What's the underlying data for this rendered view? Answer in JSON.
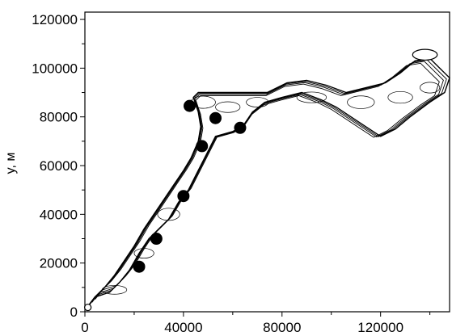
{
  "chart_data": {
    "type": "scatter",
    "title": "",
    "xlabel": "",
    "ylabel": "y, м",
    "xlim": [
      0,
      148000
    ],
    "ylim": [
      0,
      123000
    ],
    "x_ticks": [
      0,
      40000,
      80000,
      120000
    ],
    "x_tick_labels": [
      "0",
      "40000",
      "80000",
      "120000"
    ],
    "y_ticks": [
      0,
      20000,
      40000,
      60000,
      80000,
      100000,
      120000
    ],
    "y_tick_labels": [
      "0",
      "20000",
      "40000",
      "60000",
      "80000",
      "100000",
      "120000"
    ],
    "grid": false,
    "series": [
      {
        "marker": "filled-circle",
        "color": "#000000",
        "points": [
          {
            "x": 22000,
            "y": 18500
          },
          {
            "x": 29000,
            "y": 30000
          },
          {
            "x": 40000,
            "y": 47500
          },
          {
            "x": 47500,
            "y": 68000
          },
          {
            "x": 42500,
            "y": 84500
          },
          {
            "x": 53000,
            "y": 79500
          },
          {
            "x": 63000,
            "y": 75500
          }
        ]
      }
    ],
    "contour_outline": [
      [
        1000,
        2000
      ],
      [
        4000,
        6000
      ],
      [
        10000,
        8000
      ],
      [
        14000,
        12000
      ],
      [
        18000,
        17000
      ],
      [
        22000,
        24000
      ],
      [
        26000,
        30000
      ],
      [
        30000,
        34000
      ],
      [
        34000,
        38000
      ],
      [
        38000,
        45000
      ],
      [
        42000,
        50000
      ],
      [
        45000,
        56000
      ],
      [
        48000,
        62000
      ],
      [
        50000,
        66000
      ],
      [
        53000,
        72000
      ],
      [
        60000,
        74000
      ],
      [
        64000,
        76000
      ],
      [
        68000,
        82000
      ],
      [
        73000,
        86000
      ],
      [
        80000,
        88000
      ],
      [
        88000,
        90000
      ],
      [
        96000,
        87000
      ],
      [
        102000,
        84000
      ],
      [
        108000,
        80000
      ],
      [
        114000,
        76000
      ],
      [
        120000,
        72000
      ],
      [
        126000,
        75000
      ],
      [
        132000,
        80000
      ],
      [
        140000,
        86000
      ],
      [
        146000,
        90000
      ],
      [
        148000,
        96000
      ],
      [
        144000,
        100000
      ],
      [
        140000,
        104000
      ],
      [
        134000,
        103000
      ],
      [
        128000,
        98000
      ],
      [
        122000,
        94000
      ],
      [
        114000,
        92000
      ],
      [
        106000,
        90000
      ],
      [
        98000,
        93000
      ],
      [
        90000,
        95000
      ],
      [
        82000,
        94000
      ],
      [
        74000,
        90000
      ],
      [
        68000,
        90000
      ],
      [
        62000,
        90000
      ],
      [
        56000,
        90000
      ],
      [
        50000,
        90000
      ],
      [
        46000,
        90000
      ],
      [
        44000,
        88000
      ],
      [
        46000,
        82000
      ],
      [
        47000,
        76000
      ],
      [
        46000,
        70000
      ],
      [
        43000,
        63000
      ],
      [
        40000,
        58000
      ],
      [
        36000,
        52000
      ],
      [
        32000,
        46000
      ],
      [
        28000,
        40000
      ],
      [
        24000,
        34000
      ],
      [
        20000,
        27000
      ],
      [
        16000,
        21000
      ],
      [
        12000,
        15000
      ],
      [
        8000,
        10000
      ],
      [
        4000,
        6000
      ],
      [
        1000,
        2000
      ]
    ],
    "hole_marker": {
      "x": 138000,
      "y": 105500,
      "w": 5000,
      "h": 2200
    }
  }
}
